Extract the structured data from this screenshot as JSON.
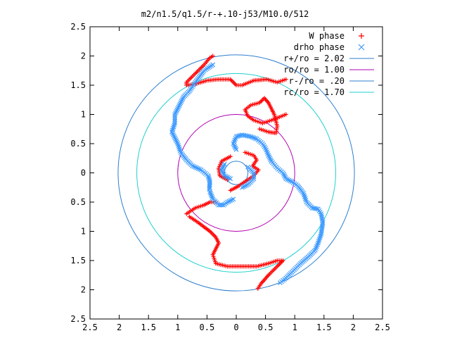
{
  "chart_data": {
    "type": "scatter",
    "title": "m2/n1.5/q1.5/r-+.10-j53/M10.0/512",
    "xlim": [
      -2.5,
      2.5
    ],
    "ylim": [
      -2.5,
      2.5
    ],
    "x_ticks": [
      -2.5,
      -2,
      -1.5,
      -1,
      -0.5,
      0,
      0.5,
      1,
      1.5,
      2,
      2.5
    ],
    "y_ticks": [
      -2.5,
      -2,
      -1.5,
      -1,
      -0.5,
      0,
      0.5,
      1,
      1.5,
      2,
      2.5
    ],
    "x_tick_labels": [
      "2.5",
      "2",
      "1.5",
      "1",
      "0.5",
      "0",
      "0.5",
      "1",
      "1.5",
      "2",
      "2.5"
    ],
    "y_tick_labels": [
      "2.5",
      "2",
      "1.5",
      "1",
      "0.5",
      "0",
      "0.5",
      "1",
      "1.5",
      "2",
      "2.5"
    ],
    "legend_position": "top-right",
    "grid": false,
    "series": [
      {
        "name": "W phase",
        "kind": "points",
        "marker": "plus",
        "color": "#ff0000",
        "segments": [
          [
            [
              0.85,
              1.6
            ],
            [
              0.7,
              1.55
            ],
            [
              0.52,
              1.6
            ],
            [
              0.3,
              1.58
            ],
            [
              0.1,
              1.5
            ],
            [
              0.0,
              1.5
            ],
            [
              -0.1,
              1.6
            ],
            [
              -0.3,
              1.6
            ],
            [
              -0.5,
              1.58
            ],
            [
              -0.7,
              1.52
            ],
            [
              -0.85,
              1.5
            ],
            [
              -0.85,
              1.55
            ],
            [
              -0.7,
              1.7
            ],
            [
              -0.55,
              1.85
            ],
            [
              -0.45,
              1.97
            ],
            [
              -0.4,
              2.0
            ]
          ],
          [
            [
              0.85,
              1.0
            ],
            [
              0.6,
              0.9
            ],
            [
              0.45,
              0.85
            ],
            [
              0.3,
              0.9
            ],
            [
              0.2,
              0.97
            ],
            [
              0.15,
              1.08
            ],
            [
              0.25,
              1.16
            ],
            [
              0.4,
              1.2
            ],
            [
              0.48,
              1.28
            ],
            [
              0.55,
              1.2
            ],
            [
              0.65,
              1.0
            ],
            [
              0.7,
              0.8
            ],
            [
              0.68,
              0.68
            ],
            [
              0.55,
              0.7
            ],
            [
              0.4,
              0.75
            ]
          ],
          [
            [
              -0.8,
              -0.75
            ],
            [
              -0.65,
              -0.85
            ],
            [
              -0.45,
              -1.0
            ],
            [
              -0.35,
              -1.1
            ],
            [
              -0.3,
              -1.2
            ],
            [
              -0.4,
              -1.4
            ],
            [
              -0.35,
              -1.55
            ],
            [
              -0.15,
              -1.6
            ],
            [
              0.1,
              -1.6
            ],
            [
              0.35,
              -1.6
            ],
            [
              0.55,
              -1.55
            ],
            [
              0.7,
              -1.5
            ],
            [
              0.8,
              -1.5
            ],
            [
              0.7,
              -1.6
            ],
            [
              0.55,
              -1.75
            ],
            [
              0.42,
              -1.9
            ],
            [
              0.37,
              -1.98
            ]
          ],
          [
            [
              -0.85,
              -0.7
            ],
            [
              -0.7,
              -0.6
            ],
            [
              -0.55,
              -0.55
            ],
            [
              -0.45,
              -0.5
            ],
            [
              -0.35,
              -0.5
            ]
          ],
          [
            [
              0.15,
              0.35
            ],
            [
              0.3,
              0.3
            ],
            [
              0.35,
              0.22
            ],
            [
              0.28,
              0.12
            ],
            [
              0.38,
              0.05
            ],
            [
              0.3,
              -0.05
            ],
            [
              0.15,
              -0.15
            ],
            [
              0.05,
              -0.22
            ],
            [
              -0.1,
              -0.3
            ]
          ],
          [
            [
              -0.1,
              0.28
            ],
            [
              -0.25,
              0.2
            ],
            [
              -0.3,
              0.08
            ],
            [
              -0.28,
              -0.05
            ],
            [
              -0.15,
              -0.12
            ]
          ]
        ]
      },
      {
        "name": "drho phase",
        "kind": "points",
        "marker": "cross",
        "color": "#3d9aff",
        "segments": [
          [
            [
              -0.4,
              1.85
            ],
            [
              -0.55,
              1.75
            ],
            [
              -0.7,
              1.55
            ],
            [
              -0.8,
              1.4
            ],
            [
              -0.9,
              1.3
            ],
            [
              -0.95,
              1.2
            ],
            [
              -1.0,
              1.1
            ],
            [
              -1.05,
              1.0
            ],
            [
              -1.05,
              0.85
            ],
            [
              -1.1,
              0.7
            ],
            [
              -1.0,
              0.5
            ],
            [
              -0.95,
              0.35
            ],
            [
              -0.85,
              0.22
            ],
            [
              -0.75,
              0.12
            ],
            [
              -0.6,
              0.05
            ],
            [
              -0.48,
              -0.05
            ],
            [
              -0.45,
              -0.15
            ],
            [
              -0.46,
              -0.28
            ]
          ],
          [
            [
              -0.45,
              -0.32
            ],
            [
              -0.4,
              -0.45
            ],
            [
              -0.3,
              -0.55
            ],
            [
              -0.22,
              -0.55
            ],
            [
              -0.15,
              -0.5
            ],
            [
              -0.05,
              -0.45
            ]
          ],
          [
            [
              0.0,
              0.4
            ],
            [
              -0.05,
              0.5
            ],
            [
              0.0,
              0.62
            ],
            [
              0.1,
              0.65
            ],
            [
              0.25,
              0.62
            ],
            [
              0.35,
              0.58
            ],
            [
              0.45,
              0.5
            ],
            [
              0.5,
              0.42
            ],
            [
              0.55,
              0.3
            ],
            [
              0.6,
              0.2
            ]
          ],
          [
            [
              0.6,
              0.2
            ],
            [
              0.7,
              0.08
            ],
            [
              0.8,
              0.0
            ],
            [
              0.85,
              -0.1
            ],
            [
              0.95,
              -0.15
            ],
            [
              1.05,
              -0.22
            ],
            [
              1.15,
              -0.35
            ],
            [
              1.2,
              -0.5
            ],
            [
              1.3,
              -0.6
            ],
            [
              1.4,
              -0.62
            ],
            [
              1.45,
              -0.7
            ],
            [
              1.48,
              -0.85
            ],
            [
              1.45,
              -1.05
            ],
            [
              1.4,
              -1.2
            ],
            [
              1.35,
              -1.32
            ],
            [
              1.25,
              -1.42
            ],
            [
              1.1,
              -1.55
            ],
            [
              0.95,
              -1.7
            ],
            [
              0.85,
              -1.8
            ],
            [
              0.75,
              -1.88
            ]
          ],
          [
            [
              -0.2,
              0.15
            ],
            [
              -0.25,
              0.05
            ],
            [
              -0.2,
              -0.05
            ],
            [
              -0.1,
              -0.1
            ]
          ],
          [
            [
              0.2,
              0.1
            ],
            [
              0.3,
              0.0
            ],
            [
              0.3,
              -0.1
            ],
            [
              0.2,
              -0.2
            ],
            [
              0.1,
              -0.25
            ]
          ]
        ]
      },
      {
        "name": "r+/ro = 2.02",
        "kind": "circle",
        "radius": 2.02,
        "color": "#2e7fcf"
      },
      {
        "name": "ro/ro = 1.00",
        "kind": "circle",
        "radius": 1.0,
        "color": "#b000b0"
      },
      {
        "name": "r-/ro = .20",
        "kind": "circle",
        "radius": 0.2,
        "color": "#2e7fcf"
      },
      {
        "name": "rc/ro = 1.70",
        "kind": "circle",
        "radius": 1.7,
        "color": "#20d0d0"
      }
    ]
  }
}
